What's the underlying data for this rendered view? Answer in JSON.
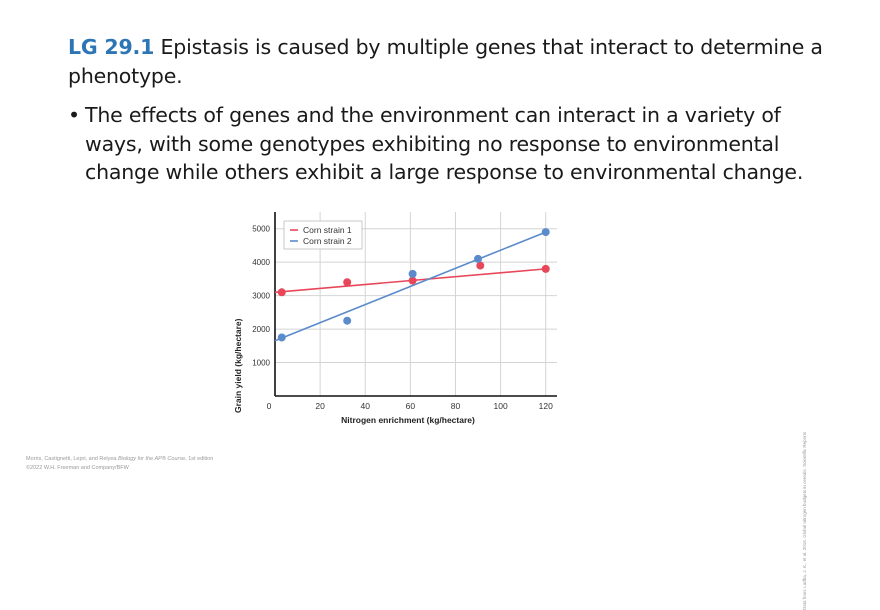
{
  "slide": {
    "heading_tag": "LG 29.1",
    "heading_text": " Epistasis is caused by multiple genes that interact to determine a phenotype.",
    "bullet_marker": "•",
    "bullet_text": "The effects of genes and the environment can interact in a variety of ways, with some genotypes exhibiting no response to environmental change while others exhibit a large response to environmental change.",
    "footer_line1_pre": "Morris, Castignetti, Lepri, and Relyea ",
    "footer_line1_italic": "Biology for the AP® Course",
    "footer_line1_post": ", 1st edition",
    "footer_line2": "©2022 W.H. Freeman and Company/BFW",
    "side_credit": "Data from: Ladha, J. K., et al. 2016. Global nitrogen budgets in cereals. Scientific Reports"
  },
  "colors": {
    "heading_accent": "#2e75b6",
    "strain1": "#e8475a",
    "strain2": "#5b8bcb",
    "grid": "#d4d4d4"
  },
  "chart_data": {
    "type": "scatter",
    "title": "",
    "xlabel": "Nitrogen enrichment (kg/hectare)",
    "ylabel": "Grain yield (kg/hectare)",
    "xlim": [
      0,
      125
    ],
    "ylim": [
      0,
      5500
    ],
    "xticks": [
      0,
      20,
      40,
      60,
      80,
      100,
      120
    ],
    "yticks": [
      1000,
      2000,
      3000,
      4000,
      5000
    ],
    "grid": true,
    "legend_position": "upper left",
    "series": [
      {
        "name": "Corn strain 1",
        "color": "#e8475a",
        "x": [
          3,
          32,
          61,
          91,
          120
        ],
        "y": [
          3100,
          3400,
          3450,
          3900,
          3800
        ],
        "trendline": {
          "x": [
            0,
            120
          ],
          "y": [
            3100,
            3800
          ]
        }
      },
      {
        "name": "Corn strain 2",
        "color": "#5b8bcb",
        "x": [
          3,
          32,
          61,
          90,
          120
        ],
        "y": [
          1750,
          2250,
          3650,
          4100,
          4900
        ],
        "trendline": {
          "x": [
            0,
            120
          ],
          "y": [
            1650,
            4900
          ]
        }
      }
    ]
  }
}
